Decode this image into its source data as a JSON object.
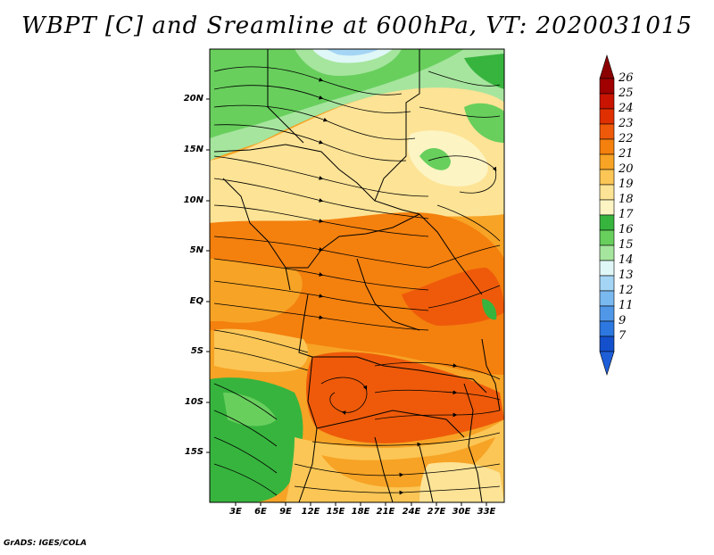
{
  "title": "WBPT [C] and Sreamline at 600hPa, VT: 2020031015",
  "footer": "GrADS: IGES/COLA",
  "map": {
    "lat_labels": [
      "20N",
      "15N",
      "10N",
      "5N",
      "EQ",
      "5S",
      "10S",
      "15S"
    ],
    "lon_labels": [
      "3E",
      "6E",
      "9E",
      "12E",
      "15E",
      "18E",
      "21E",
      "24E",
      "27E",
      "30E",
      "33E"
    ]
  },
  "colorbar": {
    "labels": [
      "26",
      "25",
      "24",
      "23",
      "22",
      "21",
      "20",
      "19",
      "18",
      "17",
      "16",
      "15",
      "14",
      "13",
      "12",
      "11",
      "9",
      "7"
    ],
    "colors": [
      "#a00000",
      "#c81400",
      "#e03000",
      "#ee5a0a",
      "#f4800e",
      "#f7a325",
      "#fbc655",
      "#fde395",
      "#fdf4c4",
      "#37b43e",
      "#68cf5d",
      "#a6e59e",
      "#e0f7f7",
      "#a4d5f5",
      "#7ab8f0",
      "#5097e8",
      "#2d78e0",
      "#1450cc"
    ],
    "arrow_top_color": "#8b0000",
    "arrow_bottom_color": "#1e5fd8"
  }
}
